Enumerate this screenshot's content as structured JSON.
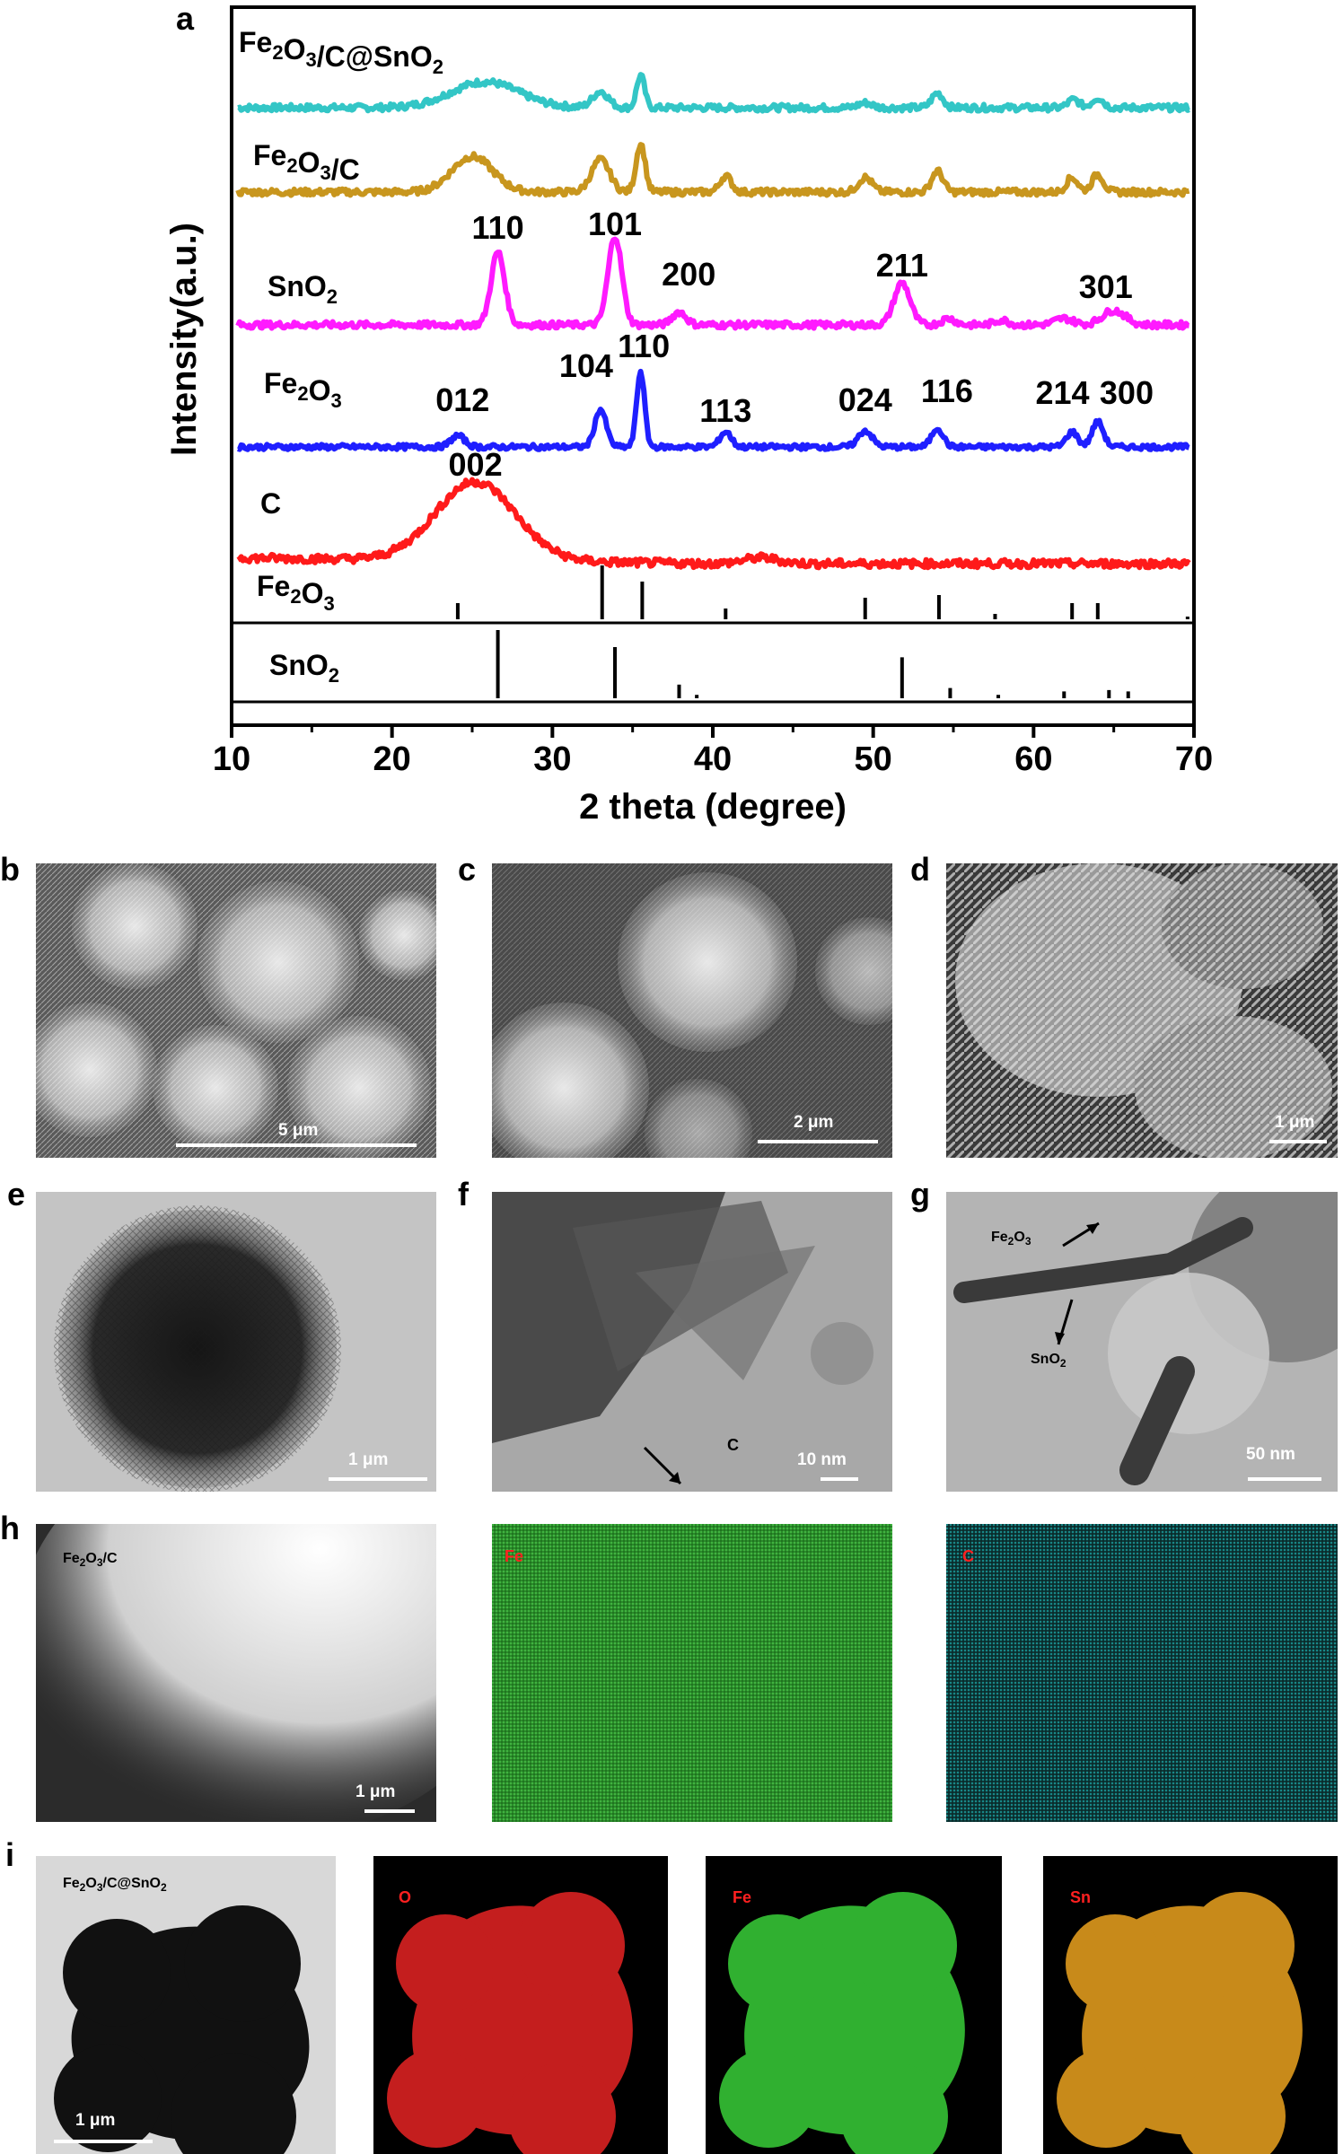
{
  "figure": {
    "panel_a": "a",
    "panel_b": "b",
    "panel_c": "c",
    "panel_d": "d",
    "panel_e": "e",
    "panel_f": "f",
    "panel_g": "g",
    "panel_h": "h",
    "panel_i": "i"
  },
  "chart_data": {
    "type": "line",
    "title": "",
    "xlabel": "2 theta (degree)",
    "ylabel": "Intensity(a.u.)",
    "xlim": [
      10,
      70
    ],
    "xticks": [
      "10",
      "20",
      "30",
      "40",
      "50",
      "60",
      "70"
    ],
    "grid": false,
    "series": [
      {
        "name": "Fe2O3/C@SnO2",
        "label_main": "Fe",
        "label_parts": [
          "2",
          "O",
          "3",
          "/C@SnO",
          "2"
        ],
        "color": "#33c6c6",
        "peaks": [
          [
            25.8,
            1.6,
            3.0
          ],
          [
            33.0,
            1.0,
            0.7
          ],
          [
            35.5,
            2.0,
            0.35
          ],
          [
            49.5,
            0.3,
            0.6
          ],
          [
            54.0,
            0.9,
            0.5
          ],
          [
            62.5,
            0.5,
            0.5
          ],
          [
            64.0,
            0.6,
            0.5
          ]
        ]
      },
      {
        "name": "Fe2O3/C",
        "color": "#c8961e",
        "peaks": [
          [
            25.0,
            2.2,
            1.8
          ],
          [
            33.0,
            2.0,
            0.8
          ],
          [
            35.5,
            3.0,
            0.4
          ],
          [
            40.8,
            1.0,
            0.5
          ],
          [
            49.5,
            0.9,
            0.6
          ],
          [
            54.0,
            1.3,
            0.5
          ],
          [
            62.4,
            0.9,
            0.5
          ],
          [
            64.0,
            1.1,
            0.5
          ]
        ]
      },
      {
        "name": "SnO2",
        "color": "#ff1aff",
        "peaks": [
          [
            26.6,
            4.5,
            0.6
          ],
          [
            33.9,
            5.5,
            0.6
          ],
          [
            37.9,
            0.8,
            0.6
          ],
          [
            51.8,
            2.6,
            0.7
          ],
          [
            54.7,
            0.4,
            0.6
          ],
          [
            58.0,
            0.3,
            0.6
          ],
          [
            61.9,
            0.4,
            0.8
          ],
          [
            65.0,
            0.9,
            1.0
          ]
        ],
        "peak_labels": [
          [
            "110",
            26.6
          ],
          [
            "101",
            33.9
          ],
          [
            "200",
            38.5
          ],
          [
            "211",
            51.8
          ],
          [
            "301",
            64.5
          ]
        ]
      },
      {
        "name": "Fe2O3",
        "color": "#1f1fff",
        "peaks": [
          [
            24.1,
            0.9,
            0.6
          ],
          [
            33.0,
            3.0,
            0.5
          ],
          [
            35.5,
            6.0,
            0.35
          ],
          [
            40.8,
            1.2,
            0.5
          ],
          [
            49.5,
            1.3,
            0.6
          ],
          [
            54.0,
            1.5,
            0.5
          ],
          [
            62.4,
            1.2,
            0.5
          ],
          [
            64.0,
            2.0,
            0.5
          ]
        ],
        "peak_labels": [
          [
            "012",
            24.4
          ],
          [
            "104",
            32.1
          ],
          [
            "110",
            35.7
          ],
          [
            "113",
            40.8
          ],
          [
            "024",
            49.5
          ],
          [
            "116",
            54.6
          ],
          [
            "214",
            61.8
          ],
          [
            "300",
            65.8
          ]
        ]
      },
      {
        "name": "C",
        "color": "#ff1a1a",
        "peaks": [
          [
            25.2,
            4.0,
            3.5
          ],
          [
            43.0,
            0.3,
            1.5
          ]
        ],
        "peak_labels": [
          [
            "002",
            25.2
          ]
        ]
      }
    ],
    "references": [
      {
        "name": "Fe2O3",
        "lines": [
          [
            24.1,
            0.3
          ],
          [
            33.1,
            1.0
          ],
          [
            35.6,
            0.7
          ],
          [
            40.8,
            0.2
          ],
          [
            49.5,
            0.4
          ],
          [
            54.1,
            0.45
          ],
          [
            57.6,
            0.1
          ],
          [
            62.4,
            0.3
          ],
          [
            64.0,
            0.3
          ],
          [
            69.6,
            0.05
          ]
        ]
      },
      {
        "name": "SnO2",
        "lines": [
          [
            26.6,
            1.0
          ],
          [
            33.9,
            0.75
          ],
          [
            37.9,
            0.2
          ],
          [
            39.0,
            0.05
          ],
          [
            51.8,
            0.6
          ],
          [
            54.8,
            0.15
          ],
          [
            57.8,
            0.05
          ],
          [
            61.9,
            0.1
          ],
          [
            64.7,
            0.12
          ],
          [
            65.9,
            0.1
          ]
        ]
      }
    ]
  },
  "micrographs": {
    "b_scale": "5 μm",
    "c_scale": "2 μm",
    "d_scale": "1 μm",
    "e_scale": "1 μm",
    "f_scale": "10 nm",
    "f_label": "C",
    "g_scale": "50 nm",
    "g_label_fe": "Fe",
    "g_label_sn": "SnO",
    "h_scale": "1 μm",
    "h_label_1": "Fe",
    "h_label_2": "Fe",
    "h_label_3": "C",
    "i_scale": "1 μm",
    "i_label_1": "Fe",
    "i_label_2": "O",
    "i_label_3": "Fe",
    "i_label_4": "Sn"
  }
}
